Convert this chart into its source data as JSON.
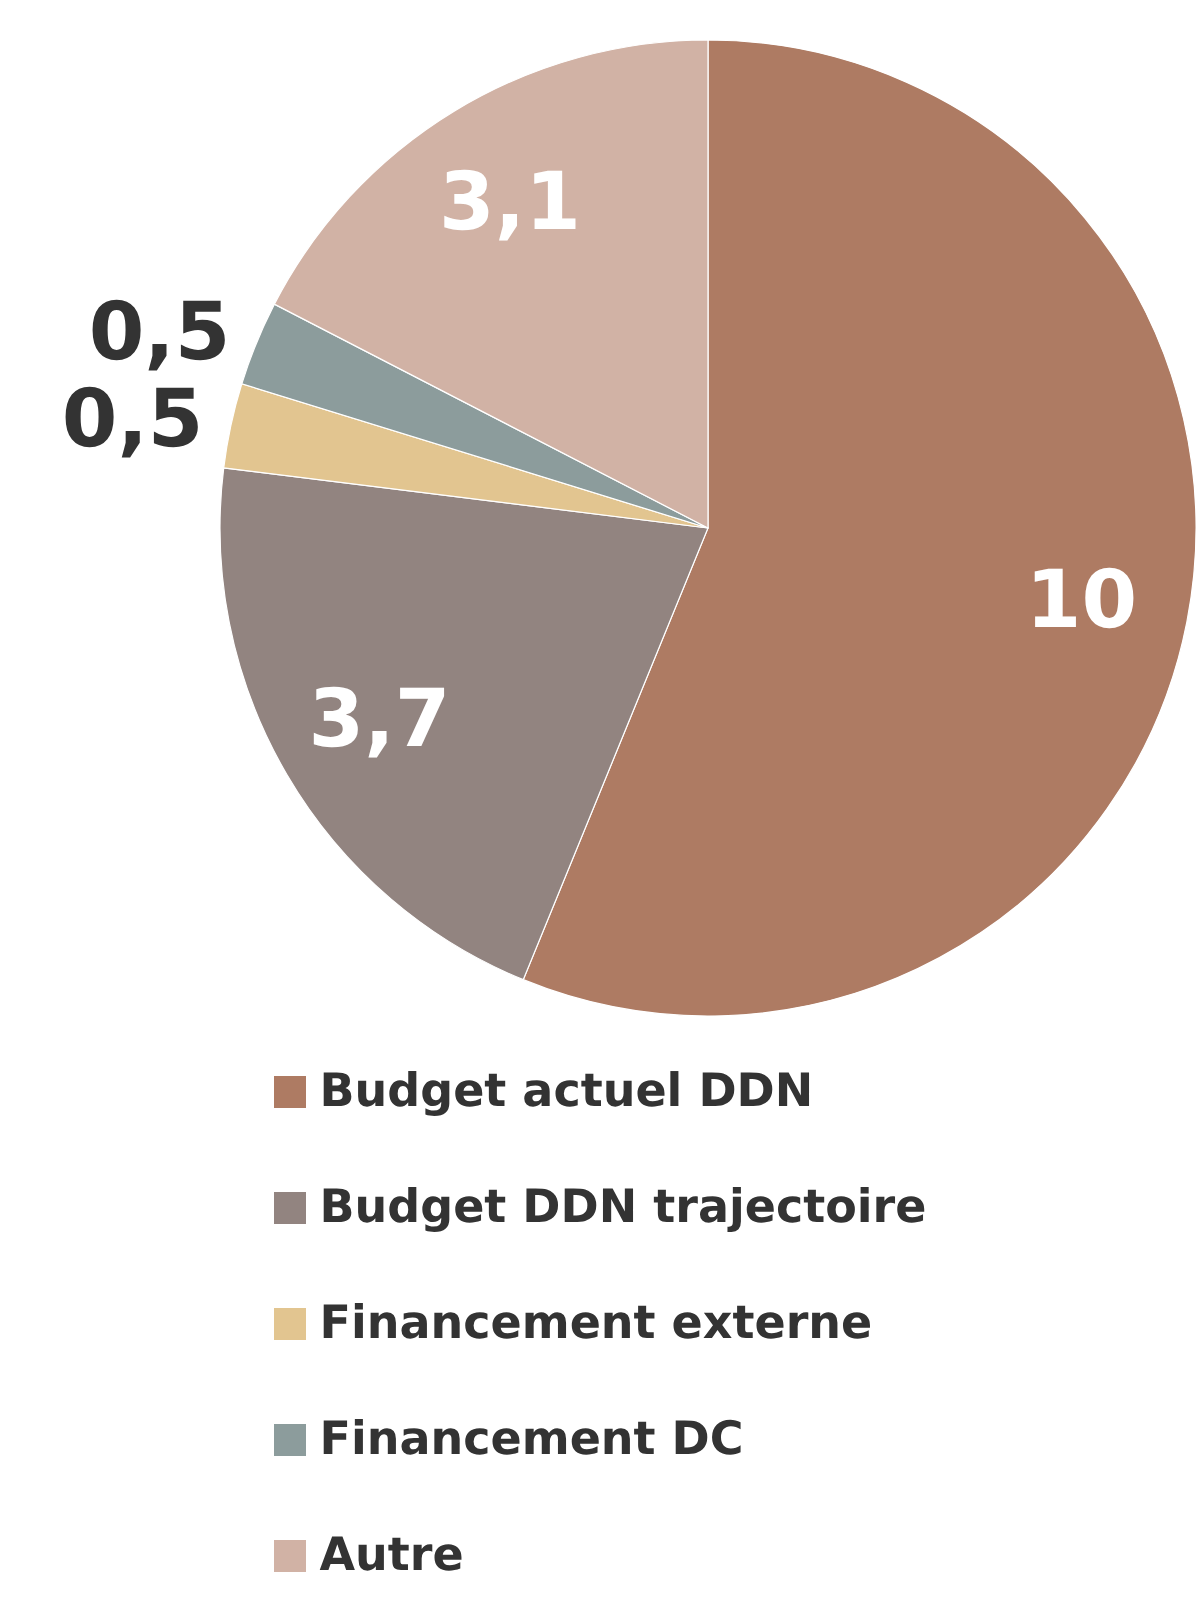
{
  "chart_data": {
    "type": "pie",
    "categories": [
      "Budget actuel DDN",
      "Budget DDN trajectoire",
      "Financement externe",
      "Financement DC",
      "Autre"
    ],
    "values": [
      10,
      3.7,
      0.5,
      0.5,
      3.1
    ],
    "colors": [
      "#ae7b63",
      "#928480",
      "#e2c590",
      "#8c9c9c",
      "#d1b2a5"
    ],
    "value_labels": [
      "10",
      "3,7",
      "0,5",
      "0,5",
      "3,1"
    ],
    "legend": "bottom"
  }
}
